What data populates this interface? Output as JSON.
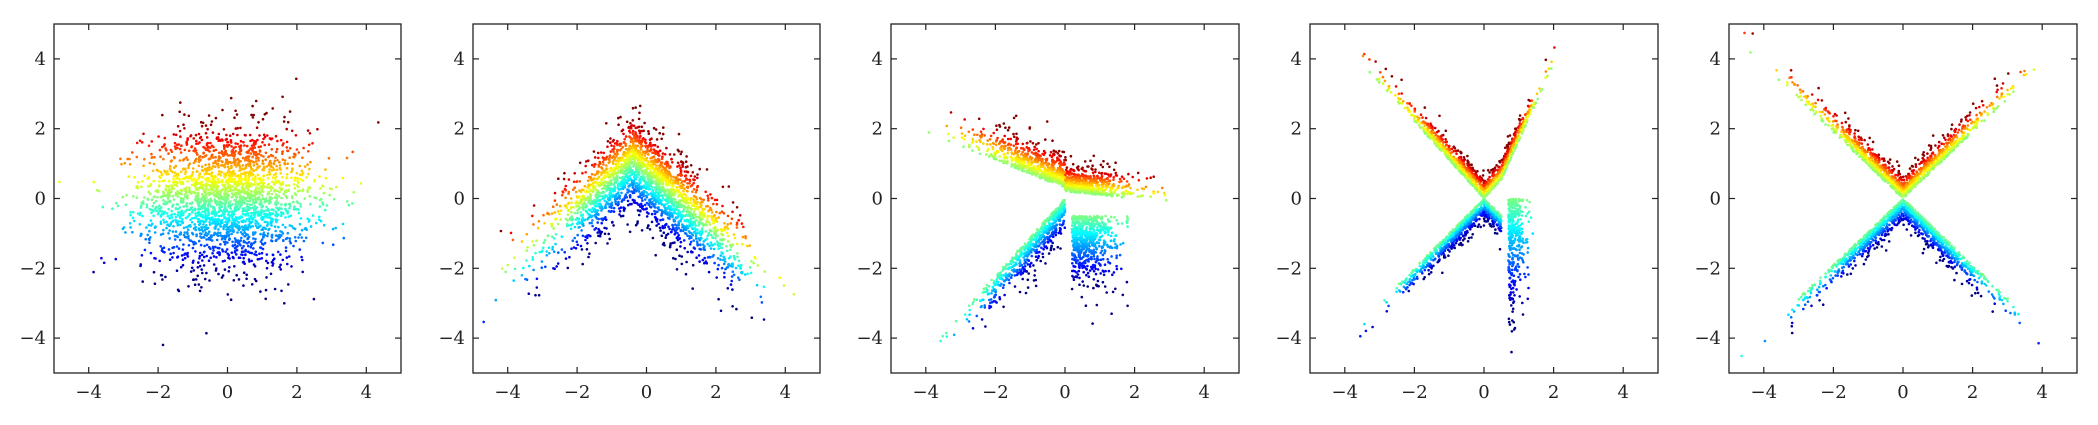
{
  "chart_data": [
    {
      "type": "scatter",
      "panel": 1,
      "shape": "gaussian",
      "xlim": [
        -5,
        5
      ],
      "ylim": [
        -5,
        5
      ],
      "xticks": [
        "−4",
        "−2",
        "0",
        "2",
        "4"
      ],
      "yticks": [
        "4",
        "2",
        "0",
        "−2",
        "−4"
      ],
      "colormap": "jet (y-based)",
      "title": "",
      "xlabel": "",
      "ylabel": ""
    },
    {
      "type": "scatter",
      "panel": 2,
      "shape": "inverted-V",
      "xlim": [
        -5,
        5
      ],
      "ylim": [
        -5,
        5
      ],
      "xticks": [
        "−4",
        "−2",
        "0",
        "2",
        "4"
      ],
      "yticks": [
        "4",
        "2",
        "0",
        "−2",
        "−4"
      ],
      "colormap": "jet (y-based)",
      "title": "",
      "xlabel": "",
      "ylabel": ""
    },
    {
      "type": "scatter",
      "panel": 3,
      "shape": "arrow",
      "xlim": [
        -5,
        5
      ],
      "ylim": [
        -5,
        5
      ],
      "xticks": [
        "−4",
        "−2",
        "0",
        "2",
        "4"
      ],
      "yticks": [
        "4",
        "2",
        "0",
        "−2",
        "−4"
      ],
      "colormap": "jet (y-based)",
      "title": "",
      "xlabel": "",
      "ylabel": ""
    },
    {
      "type": "scatter",
      "panel": 4,
      "shape": "X (partial)",
      "xlim": [
        -5,
        5
      ],
      "ylim": [
        -5,
        5
      ],
      "xticks": [
        "−4",
        "−2",
        "0",
        "2",
        "4"
      ],
      "yticks": [
        "4",
        "2",
        "0",
        "−2",
        "−4"
      ],
      "colormap": "jet (y-based)",
      "title": "",
      "xlabel": "",
      "ylabel": ""
    },
    {
      "type": "scatter",
      "panel": 5,
      "shape": "X",
      "xlim": [
        -5,
        5
      ],
      "ylim": [
        -5,
        5
      ],
      "xticks": [
        "−4",
        "−2",
        "0",
        "2",
        "4"
      ],
      "yticks": [
        "4",
        "2",
        "0",
        "−2",
        "−4"
      ],
      "colormap": "jet (y-based)",
      "title": "",
      "xlabel": "",
      "ylabel": ""
    }
  ],
  "colors": {
    "axis": "#222222",
    "background": "#ffffff"
  }
}
